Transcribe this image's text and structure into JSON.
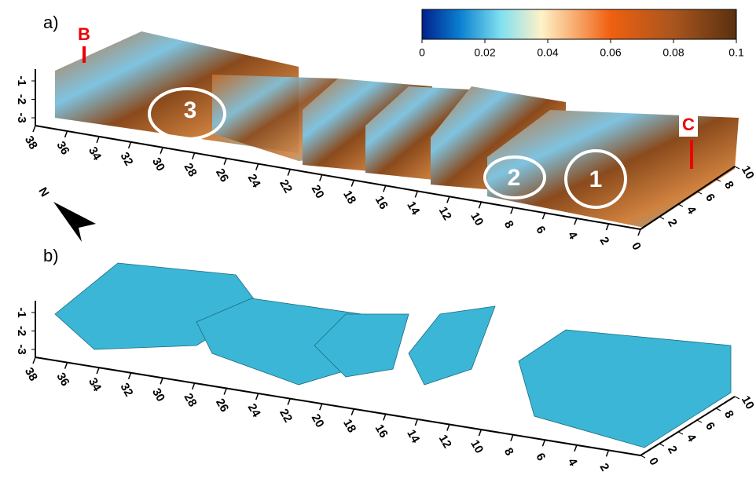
{
  "panels": [
    {
      "label": "a)",
      "markers": [
        "B",
        "C"
      ],
      "regions": [
        "1",
        "2",
        "3"
      ],
      "north": "N",
      "x_ticks": [
        38,
        36,
        34,
        32,
        30,
        28,
        26,
        24,
        22,
        20,
        18,
        16,
        14,
        12,
        10,
        8,
        6,
        4,
        2,
        0
      ],
      "depth_ticks": [
        2,
        4,
        6,
        8,
        10
      ],
      "z_ticks": [
        -1,
        -2,
        -3
      ]
    },
    {
      "label": "b)",
      "x_ticks": [
        38,
        36,
        34,
        32,
        30,
        28,
        26,
        24,
        22,
        20,
        18,
        16,
        14,
        12,
        10,
        8,
        6,
        4,
        2
      ],
      "depth_ticks": [
        0,
        2,
        4,
        6,
        8,
        10
      ],
      "z_ticks": [
        -1,
        -2,
        -3
      ]
    }
  ],
  "colorbar": {
    "range": [
      0,
      0.1
    ],
    "ticks": [
      0,
      0.02,
      0.04,
      0.06,
      0.08,
      0.1
    ]
  }
}
